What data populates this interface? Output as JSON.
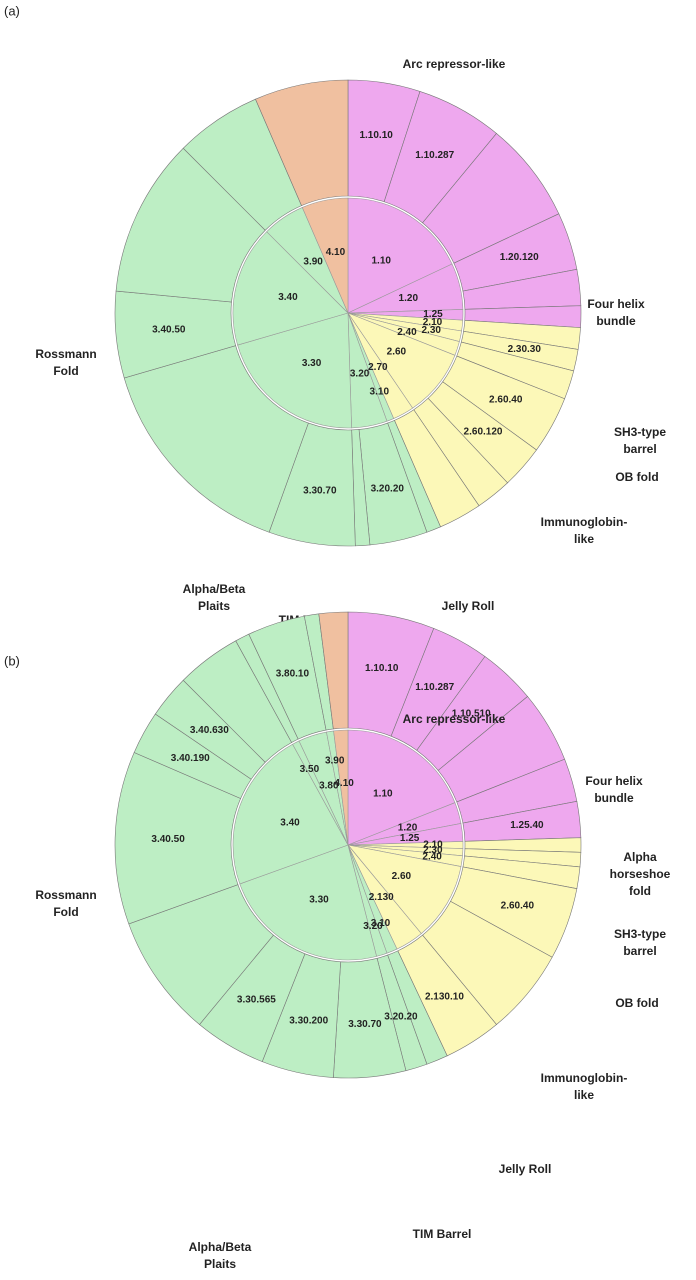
{
  "chart_data": [
    {
      "type": "sunburst",
      "panel_label": "(a)",
      "colors": [
        "#eea8ee",
        "#fcf8b8",
        "#bdeec4",
        "#f0c0a0"
      ],
      "inner": {
        "categories": [
          "1.10",
          "1.20",
          "1.25",
          "2.10",
          "2.30",
          "2.40",
          "2.60",
          "2.70",
          "3.10",
          "3.20",
          "3.30",
          "3.40",
          "3.90",
          "4.10"
        ],
        "values": [
          18,
          6.5,
          1.5,
          1.5,
          1.5,
          2,
          9.5,
          3,
          1,
          5,
          21,
          17,
          6,
          6.5
        ]
      },
      "outer": {
        "categories": [
          "1.10.10",
          "1.10.287",
          null,
          "1.20.120",
          null,
          null,
          null,
          "2.30.30",
          null,
          "2.60.40",
          "2.60.120",
          null,
          null,
          null,
          "3.20.20",
          null,
          "3.30.70",
          null,
          "3.40.50",
          null,
          null,
          null
        ],
        "values": [
          5,
          6,
          7,
          4,
          2.5,
          1.5,
          1.5,
          1.5,
          2,
          4,
          3,
          2.5,
          3,
          1,
          4,
          1,
          6,
          15,
          6,
          11,
          6,
          6.5
        ]
      },
      "annotations": [
        {
          "lines": [
            "Arc repressor-like"
          ]
        },
        {
          "lines": [
            "Four helix",
            "bundle"
          ]
        },
        {
          "lines": [
            "SH3-type",
            "barrel"
          ]
        },
        {
          "lines": [
            "OB fold"
          ]
        },
        {
          "lines": [
            "Immunoglobin-",
            "like"
          ]
        },
        {
          "lines": [
            "Jelly Roll"
          ]
        },
        {
          "lines": [
            "TIM Barrel"
          ]
        },
        {
          "lines": [
            "Alpha/Beta",
            "Plaits"
          ]
        },
        {
          "lines": [
            "Rossmann",
            "Fold"
          ]
        }
      ]
    },
    {
      "type": "sunburst",
      "panel_label": "(b)",
      "colors": [
        "#eea8ee",
        "#fcf8b8",
        "#bdeec4",
        "#f0c0a0"
      ],
      "inner": {
        "categories": [
          "1.10",
          "1.20",
          "1.25",
          "2.10",
          "2.30",
          "2.40",
          "2.60",
          "2.130",
          "3.10",
          "3.20",
          "3.30",
          "3.40",
          "3.50",
          "3.80",
          "3.90",
          "4.10"
        ],
        "values": [
          19,
          3,
          2.5,
          1,
          1,
          1.5,
          11,
          4,
          1.5,
          1.5,
          23.5,
          22.5,
          1,
          4,
          1,
          2
        ]
      },
      "outer": {
        "categories": [
          "1.10.10",
          "1.10.287",
          "1.10.510",
          null,
          null,
          "1.25.40",
          null,
          null,
          null,
          "2.60.40",
          null,
          "2.130.10",
          null,
          "3.20.20",
          "3.30.70",
          "3.30.200",
          "3.30.565",
          null,
          "3.40.50",
          "3.40.190",
          "3.40.630",
          null,
          null,
          "3.80.10",
          null,
          null
        ],
        "values": [
          6,
          4,
          4,
          5,
          3,
          2.5,
          1,
          1,
          1.5,
          5,
          6,
          4,
          1.5,
          1.5,
          5,
          5,
          5,
          8.5,
          12,
          3,
          3,
          4.5,
          1,
          4,
          1,
          2
        ]
      },
      "annotations": [
        {
          "lines": [
            "Arc repressor-like"
          ]
        },
        {
          "lines": [
            "Four helix",
            "bundle"
          ]
        },
        {
          "lines": [
            "Alpha",
            "horseshoe",
            "fold"
          ]
        },
        {
          "lines": [
            "SH3-type",
            "barrel"
          ]
        },
        {
          "lines": [
            "OB fold"
          ]
        },
        {
          "lines": [
            "Immunoglobin-",
            "like"
          ]
        },
        {
          "lines": [
            "Jelly Roll"
          ]
        },
        {
          "lines": [
            "TIM Barrel"
          ]
        },
        {
          "lines": [
            "Alpha/Beta",
            "Plaits"
          ]
        },
        {
          "lines": [
            "Rossmann",
            "Fold"
          ]
        }
      ]
    }
  ]
}
